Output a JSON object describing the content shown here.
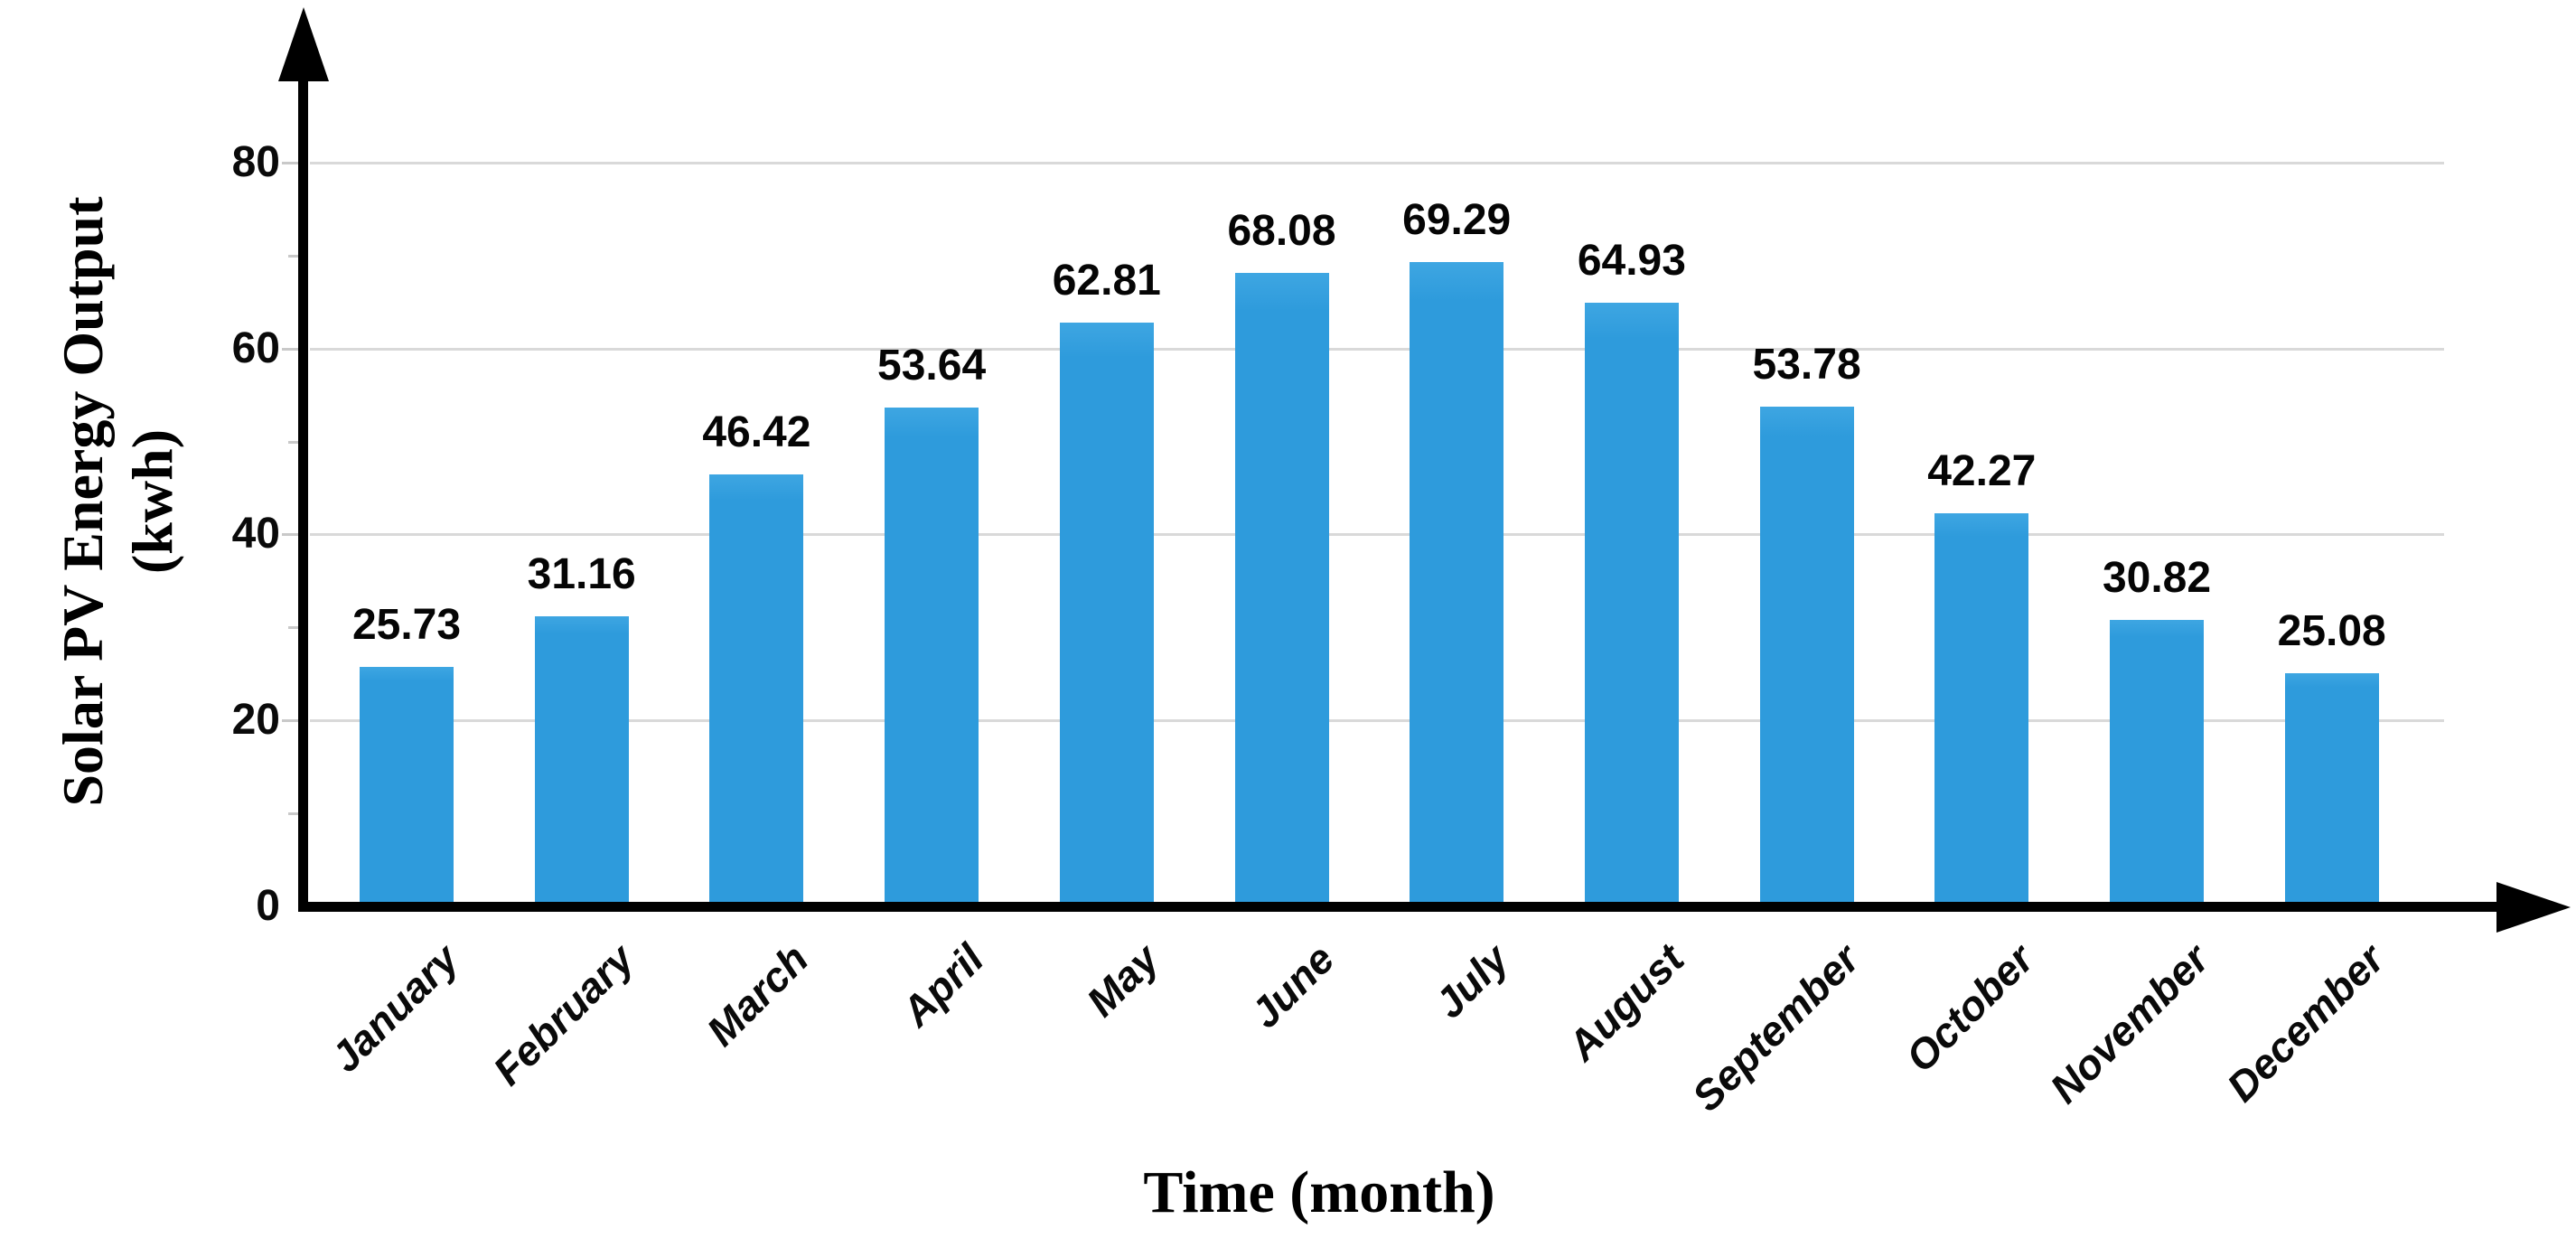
{
  "chart_data": {
    "type": "bar",
    "title": "",
    "xlabel": "Time (month)",
    "ylabel": "Solar PV Energy Output (kwh)",
    "ylabel_line1": "Solar PV Energy Output",
    "ylabel_line2": "(kwh)",
    "categories": [
      "January",
      "February",
      "March",
      "April",
      "May",
      "June",
      "July",
      "August",
      "September",
      "October",
      "November",
      "December"
    ],
    "values": [
      25.73,
      31.16,
      46.42,
      53.64,
      62.81,
      68.08,
      69.29,
      64.93,
      53.78,
      42.27,
      30.82,
      25.08
    ],
    "value_labels": [
      "25.73",
      "31.16",
      "46.42",
      "53.64",
      "62.81",
      "68.08",
      "69.29",
      "64.93",
      "53.78",
      "42.27",
      "30.82",
      "25.08"
    ],
    "yticks": [
      0,
      20,
      40,
      60,
      80
    ],
    "ylim": [
      0,
      88
    ],
    "grid": true,
    "legend": false,
    "bar_color": "#2e9bdc",
    "gridline_color": "#d9d9d9",
    "axis_color": "#000000",
    "text_color": "#000000"
  }
}
